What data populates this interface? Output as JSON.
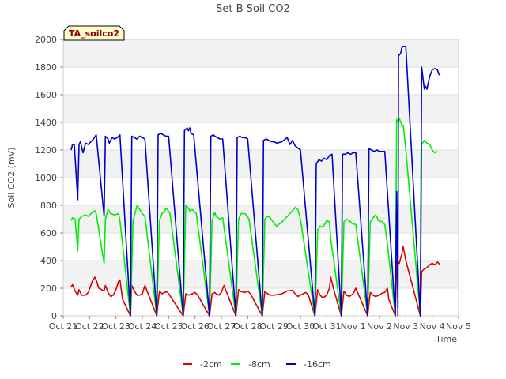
{
  "chart_data": {
    "type": "line",
    "title": "Set B Soil CO2",
    "xlabel": "Time",
    "ylabel": "Soil CO2 (mV)",
    "ylim": [
      0,
      2000
    ],
    "yticks": [
      0,
      200,
      400,
      600,
      800,
      1000,
      1200,
      1400,
      1600,
      1800,
      2000
    ],
    "xlim": [
      0,
      15
    ],
    "xtick_labels": [
      "Oct 21",
      "Oct 22",
      "Oct 23",
      "Oct 24",
      "Oct 25",
      "Oct 26",
      "Oct 27",
      "Oct 28",
      "Oct 29",
      "Oct 30",
      "Oct 31",
      "Nov 1",
      "Nov 2",
      "Nov 3",
      "Nov 4",
      "Nov 5"
    ],
    "annotation": "TA_soilco2",
    "legend_position": "bottom-center",
    "series": [
      {
        "name": "-2cm",
        "color": "#dd0000",
        "points": [
          [
            0.3,
            210
          ],
          [
            0.35,
            225
          ],
          [
            0.45,
            180
          ],
          [
            0.55,
            150
          ],
          [
            0.6,
            190
          ],
          [
            0.7,
            150
          ],
          [
            0.85,
            150
          ],
          [
            0.95,
            170
          ],
          [
            1.1,
            250
          ],
          [
            1.2,
            280
          ],
          [
            1.25,
            260
          ],
          [
            1.35,
            200
          ],
          [
            1.55,
            180
          ],
          [
            1.6,
            220
          ],
          [
            1.7,
            170
          ],
          [
            1.8,
            140
          ],
          [
            1.9,
            150
          ],
          [
            2.0,
            190
          ],
          [
            2.1,
            250
          ],
          [
            2.15,
            260
          ],
          [
            2.25,
            120
          ],
          [
            2.55,
            0
          ],
          [
            2.6,
            220
          ],
          [
            2.7,
            180
          ],
          [
            2.8,
            150
          ],
          [
            2.9,
            150
          ],
          [
            3.0,
            160
          ],
          [
            3.1,
            220
          ],
          [
            3.2,
            170
          ],
          [
            3.55,
            0
          ],
          [
            3.65,
            180
          ],
          [
            3.75,
            160
          ],
          [
            3.85,
            170
          ],
          [
            3.95,
            175
          ],
          [
            4.0,
            160
          ],
          [
            4.55,
            0
          ],
          [
            4.65,
            160
          ],
          [
            4.75,
            150
          ],
          [
            4.9,
            160
          ],
          [
            5.0,
            170
          ],
          [
            5.1,
            150
          ],
          [
            5.55,
            0
          ],
          [
            5.65,
            160
          ],
          [
            5.75,
            170
          ],
          [
            5.8,
            160
          ],
          [
            5.9,
            150
          ],
          [
            6.0,
            170
          ],
          [
            6.1,
            220
          ],
          [
            6.55,
            0
          ],
          [
            6.65,
            190
          ],
          [
            6.75,
            175
          ],
          [
            6.9,
            170
          ],
          [
            7.0,
            180
          ],
          [
            7.1,
            160
          ],
          [
            7.55,
            0
          ],
          [
            7.65,
            180
          ],
          [
            7.75,
            160
          ],
          [
            7.85,
            150
          ],
          [
            8.0,
            150
          ],
          [
            8.3,
            160
          ],
          [
            8.5,
            180
          ],
          [
            8.7,
            185
          ],
          [
            8.8,
            160
          ],
          [
            8.9,
            140
          ],
          [
            9.0,
            150
          ],
          [
            9.2,
            170
          ],
          [
            9.3,
            150
          ],
          [
            9.55,
            0
          ],
          [
            9.65,
            190
          ],
          [
            9.75,
            150
          ],
          [
            9.85,
            130
          ],
          [
            10.0,
            150
          ],
          [
            10.1,
            200
          ],
          [
            10.15,
            280
          ],
          [
            10.25,
            200
          ],
          [
            10.55,
            0
          ],
          [
            10.65,
            180
          ],
          [
            10.75,
            150
          ],
          [
            10.85,
            140
          ],
          [
            11.0,
            160
          ],
          [
            11.1,
            200
          ],
          [
            11.55,
            0
          ],
          [
            11.65,
            170
          ],
          [
            11.75,
            150
          ],
          [
            11.85,
            140
          ],
          [
            12.0,
            150
          ],
          [
            12.1,
            165
          ],
          [
            12.2,
            170
          ],
          [
            12.3,
            200
          ],
          [
            12.35,
            120
          ],
          [
            12.6,
            0
          ],
          [
            12.65,
            400
          ],
          [
            12.75,
            380
          ],
          [
            12.85,
            450
          ],
          [
            12.9,
            500
          ],
          [
            13.0,
            400
          ],
          [
            13.55,
            0
          ],
          [
            13.6,
            320
          ],
          [
            13.7,
            340
          ],
          [
            13.8,
            350
          ],
          [
            13.9,
            370
          ],
          [
            14.0,
            380
          ],
          [
            14.1,
            370
          ],
          [
            14.2,
            390
          ],
          [
            14.3,
            370
          ]
        ]
      },
      {
        "name": "-8cm",
        "color": "#00ee00",
        "points": [
          [
            0.3,
            690
          ],
          [
            0.35,
            710
          ],
          [
            0.45,
            700
          ],
          [
            0.55,
            470
          ],
          [
            0.6,
            700
          ],
          [
            0.7,
            720
          ],
          [
            0.85,
            730
          ],
          [
            0.95,
            720
          ],
          [
            1.1,
            750
          ],
          [
            1.2,
            760
          ],
          [
            1.25,
            740
          ],
          [
            1.55,
            380
          ],
          [
            1.6,
            700
          ],
          [
            1.7,
            770
          ],
          [
            1.8,
            740
          ],
          [
            1.95,
            730
          ],
          [
            2.1,
            740
          ],
          [
            2.15,
            690
          ],
          [
            2.55,
            0
          ],
          [
            2.65,
            690
          ],
          [
            2.75,
            760
          ],
          [
            2.8,
            800
          ],
          [
            2.9,
            770
          ],
          [
            3.0,
            740
          ],
          [
            3.1,
            720
          ],
          [
            3.55,
            0
          ],
          [
            3.65,
            690
          ],
          [
            3.75,
            740
          ],
          [
            3.85,
            760
          ],
          [
            3.9,
            780
          ],
          [
            3.95,
            770
          ],
          [
            4.05,
            740
          ],
          [
            4.55,
            0
          ],
          [
            4.65,
            800
          ],
          [
            4.75,
            780
          ],
          [
            4.8,
            760
          ],
          [
            4.9,
            770
          ],
          [
            5.05,
            740
          ],
          [
            5.55,
            0
          ],
          [
            5.65,
            690
          ],
          [
            5.75,
            750
          ],
          [
            5.8,
            720
          ],
          [
            5.95,
            700
          ],
          [
            6.05,
            710
          ],
          [
            6.55,
            0
          ],
          [
            6.65,
            700
          ],
          [
            6.75,
            740
          ],
          [
            6.9,
            740
          ],
          [
            7.05,
            700
          ],
          [
            7.55,
            0
          ],
          [
            7.65,
            700
          ],
          [
            7.75,
            720
          ],
          [
            7.85,
            710
          ],
          [
            8.0,
            670
          ],
          [
            8.1,
            650
          ],
          [
            8.3,
            680
          ],
          [
            8.5,
            720
          ],
          [
            8.7,
            760
          ],
          [
            8.8,
            785
          ],
          [
            8.9,
            770
          ],
          [
            9.0,
            700
          ],
          [
            9.55,
            0
          ],
          [
            9.65,
            620
          ],
          [
            9.75,
            650
          ],
          [
            9.85,
            640
          ],
          [
            10.0,
            690
          ],
          [
            10.1,
            680
          ],
          [
            10.15,
            560
          ],
          [
            10.55,
            0
          ],
          [
            10.65,
            680
          ],
          [
            10.75,
            700
          ],
          [
            10.85,
            690
          ],
          [
            10.95,
            670
          ],
          [
            11.1,
            660
          ],
          [
            11.55,
            0
          ],
          [
            11.65,
            680
          ],
          [
            11.75,
            710
          ],
          [
            11.85,
            730
          ],
          [
            11.9,
            720
          ],
          [
            11.95,
            690
          ],
          [
            12.1,
            680
          ],
          [
            12.2,
            660
          ],
          [
            12.3,
            520
          ],
          [
            12.6,
            0
          ],
          [
            12.65,
            1420
          ],
          [
            12.7,
            1400
          ],
          [
            12.75,
            1430
          ],
          [
            12.85,
            1380
          ],
          [
            12.9,
            1380
          ],
          [
            13.0,
            1200
          ],
          [
            13.55,
            0
          ],
          [
            13.6,
            1240
          ],
          [
            13.7,
            1270
          ],
          [
            13.8,
            1250
          ],
          [
            13.9,
            1240
          ],
          [
            14.0,
            1200
          ],
          [
            14.1,
            1180
          ],
          [
            14.2,
            1190
          ]
        ]
      },
      {
        "name": "-16cm",
        "color": "#0000cc",
        "points": [
          [
            0.3,
            1200
          ],
          [
            0.35,
            1240
          ],
          [
            0.42,
            1240
          ],
          [
            0.55,
            840
          ],
          [
            0.6,
            1240
          ],
          [
            0.65,
            1260
          ],
          [
            0.75,
            1180
          ],
          [
            0.85,
            1250
          ],
          [
            0.95,
            1240
          ],
          [
            1.05,
            1260
          ],
          [
            1.15,
            1280
          ],
          [
            1.25,
            1310
          ],
          [
            1.55,
            720
          ],
          [
            1.6,
            1300
          ],
          [
            1.7,
            1280
          ],
          [
            1.75,
            1250
          ],
          [
            1.85,
            1290
          ],
          [
            1.95,
            1280
          ],
          [
            2.05,
            1290
          ],
          [
            2.15,
            1310
          ],
          [
            2.55,
            0
          ],
          [
            2.6,
            1300
          ],
          [
            2.7,
            1290
          ],
          [
            2.8,
            1280
          ],
          [
            2.9,
            1300
          ],
          [
            3.0,
            1290
          ],
          [
            3.1,
            1280
          ],
          [
            3.55,
            0
          ],
          [
            3.6,
            1310
          ],
          [
            3.7,
            1320
          ],
          [
            3.8,
            1310
          ],
          [
            3.9,
            1300
          ],
          [
            4.0,
            1300
          ],
          [
            4.55,
            0
          ],
          [
            4.6,
            1340
          ],
          [
            4.7,
            1360
          ],
          [
            4.75,
            1340
          ],
          [
            4.8,
            1360
          ],
          [
            4.85,
            1320
          ],
          [
            4.95,
            1310
          ],
          [
            5.55,
            0
          ],
          [
            5.6,
            1300
          ],
          [
            5.7,
            1310
          ],
          [
            5.75,
            1300
          ],
          [
            5.85,
            1290
          ],
          [
            5.95,
            1280
          ],
          [
            6.05,
            1280
          ],
          [
            6.55,
            0
          ],
          [
            6.6,
            1290
          ],
          [
            6.7,
            1300
          ],
          [
            6.8,
            1290
          ],
          [
            6.9,
            1290
          ],
          [
            7.0,
            1280
          ],
          [
            7.55,
            0
          ],
          [
            7.6,
            1270
          ],
          [
            7.7,
            1280
          ],
          [
            7.8,
            1270
          ],
          [
            7.9,
            1260
          ],
          [
            8.0,
            1260
          ],
          [
            8.1,
            1250
          ],
          [
            8.3,
            1260
          ],
          [
            8.5,
            1290
          ],
          [
            8.6,
            1240
          ],
          [
            8.7,
            1270
          ],
          [
            8.8,
            1230
          ],
          [
            9.0,
            1200
          ],
          [
            9.55,
            0
          ],
          [
            9.6,
            1100
          ],
          [
            9.7,
            1130
          ],
          [
            9.8,
            1120
          ],
          [
            9.9,
            1140
          ],
          [
            10.0,
            1130
          ],
          [
            10.1,
            1160
          ],
          [
            10.2,
            1170
          ],
          [
            10.55,
            0
          ],
          [
            10.6,
            1170
          ],
          [
            10.7,
            1170
          ],
          [
            10.8,
            1180
          ],
          [
            10.9,
            1170
          ],
          [
            11.0,
            1180
          ],
          [
            11.1,
            1180
          ],
          [
            11.55,
            0
          ],
          [
            11.6,
            1210
          ],
          [
            11.7,
            1200
          ],
          [
            11.8,
            1190
          ],
          [
            11.9,
            1200
          ],
          [
            12.0,
            1190
          ],
          [
            12.1,
            1190
          ],
          [
            12.2,
            1190
          ],
          [
            12.6,
            0
          ],
          [
            12.65,
            900
          ],
          [
            12.7,
            0
          ],
          [
            12.72,
            1880
          ],
          [
            12.8,
            1900
          ],
          [
            12.85,
            1940
          ],
          [
            12.9,
            1950
          ],
          [
            13.0,
            1950
          ],
          [
            13.55,
            0
          ],
          [
            13.6,
            1800
          ],
          [
            13.7,
            1640
          ],
          [
            13.75,
            1660
          ],
          [
            13.8,
            1640
          ],
          [
            13.9,
            1730
          ],
          [
            14.0,
            1780
          ],
          [
            14.1,
            1790
          ],
          [
            14.2,
            1780
          ],
          [
            14.25,
            1750
          ],
          [
            14.3,
            1740
          ]
        ]
      }
    ]
  }
}
